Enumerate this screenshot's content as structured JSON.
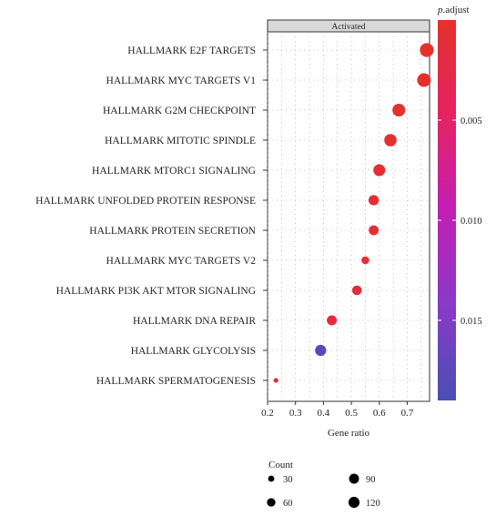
{
  "chart_data": {
    "type": "scatter",
    "facet_label": "Activated",
    "xlabel": "Gene ratio",
    "ylabel": "",
    "xlim": [
      0.2,
      0.78
    ],
    "xticks": [
      0.2,
      0.3,
      0.4,
      0.5,
      0.6,
      0.7
    ],
    "xtick_labels": [
      "0.2",
      "0.3",
      "0.4",
      "0.5",
      "0.6",
      "0.7"
    ],
    "categories": [
      "HALLMARK E2F TARGETS",
      "HALLMARK MYC TARGETS V1",
      "HALLMARK G2M CHECKPOINT",
      "HALLMARK MITOTIC SPINDLE",
      "HALLMARK MTORC1 SIGNALING",
      "HALLMARK UNFOLDED PROTEIN RESPONSE",
      "HALLMARK PROTEIN SECRETION",
      "HALLMARK MYC TARGETS V2",
      "HALLMARK PI3K AKT MTOR SIGNALING",
      "HALLMARK DNA REPAIR",
      "HALLMARK GLYCOLYSIS",
      "HALLMARK SPERMATOGENESIS"
    ],
    "points": [
      {
        "category": "HALLMARK E2F TARGETS",
        "gene_ratio": 0.77,
        "count": 140,
        "p_adjust": 0.0001
      },
      {
        "category": "HALLMARK MYC TARGETS V1",
        "gene_ratio": 0.76,
        "count": 135,
        "p_adjust": 0.0002
      },
      {
        "category": "HALLMARK G2M CHECKPOINT",
        "gene_ratio": 0.67,
        "count": 115,
        "p_adjust": 0.0003
      },
      {
        "category": "HALLMARK MITOTIC SPINDLE",
        "gene_ratio": 0.64,
        "count": 105,
        "p_adjust": 0.0005
      },
      {
        "category": "HALLMARK MTORC1 SIGNALING",
        "gene_ratio": 0.6,
        "count": 95,
        "p_adjust": 0.0006
      },
      {
        "category": "HALLMARK UNFOLDED PROTEIN RESPONSE",
        "gene_ratio": 0.58,
        "count": 65,
        "p_adjust": 0.0008
      },
      {
        "category": "HALLMARK PROTEIN SECRETION",
        "gene_ratio": 0.58,
        "count": 58,
        "p_adjust": 0.0009
      },
      {
        "category": "HALLMARK MYC TARGETS V2",
        "gene_ratio": 0.55,
        "count": 34,
        "p_adjust": 0.001
      },
      {
        "category": "HALLMARK PI3K AKT MTOR SIGNALING",
        "gene_ratio": 0.52,
        "count": 55,
        "p_adjust": 0.0012
      },
      {
        "category": "HALLMARK DNA REPAIR",
        "gene_ratio": 0.43,
        "count": 60,
        "p_adjust": 0.0015
      },
      {
        "category": "HALLMARK GLYCOLYSIS",
        "gene_ratio": 0.39,
        "count": 80,
        "p_adjust": 0.018
      },
      {
        "category": "HALLMARK SPERMATOGENESIS",
        "gene_ratio": 0.23,
        "count": 20,
        "p_adjust": 0.001
      }
    ],
    "color_legend": {
      "title_prefix": "p",
      "title_suffix": ".adjust",
      "range": [
        0.0,
        0.019
      ],
      "ticks": [
        0.005,
        0.01,
        0.015
      ],
      "tick_labels": [
        "0.005",
        "0.010",
        "0.015"
      ],
      "colors": [
        "#e4312b",
        "#e52263",
        "#c21fb3",
        "#8a39c9",
        "#4a4eb3"
      ]
    },
    "size_legend": {
      "title": "Count",
      "values": [
        30,
        90,
        60,
        120
      ],
      "labels": [
        "30",
        "90",
        "60",
        "120"
      ]
    },
    "grid": true,
    "grid_style": "dotted"
  }
}
